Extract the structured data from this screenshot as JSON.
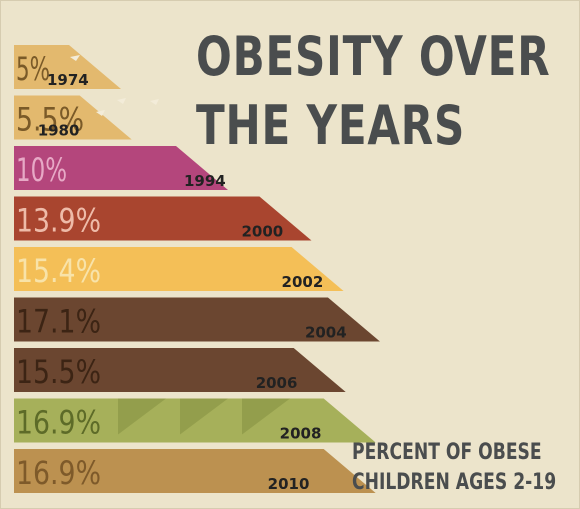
{
  "chart_data": {
    "type": "bar",
    "title_lines": [
      "OBESITY OVER",
      "THE YEARS"
    ],
    "caption_lines": [
      "PERCENT OF OBESE",
      "CHILDREN AGES 2-19"
    ],
    "categories": [
      "1974",
      "1980",
      "1994",
      "2000",
      "2002",
      "2004",
      "2006",
      "2008",
      "2010"
    ],
    "value_labels": [
      "5%",
      "5.5%",
      "10%",
      "13.9%",
      "15.4%",
      "17.1%",
      "15.5%",
      "16.9%",
      "16.9%"
    ],
    "values": [
      5,
      5.5,
      10,
      13.9,
      15.4,
      17.1,
      15.5,
      16.9,
      16.9
    ],
    "bar_colors": [
      "#e3b96e",
      "#e3b96e",
      "#b4467c",
      "#a9452f",
      "#f4bf57",
      "#6b4630",
      "#6b4630",
      "#a6b05a",
      "#bc9150"
    ],
    "label_colors": [
      "#7a5a28",
      "#7a5a28",
      "#e7a9c6",
      "#eebba9",
      "#f8e3a9",
      "#3c2414",
      "#3c2414",
      "#5d6b28",
      "#7e5a2a"
    ],
    "background": "#ece4cb",
    "text_color": "#4a4d4e"
  }
}
